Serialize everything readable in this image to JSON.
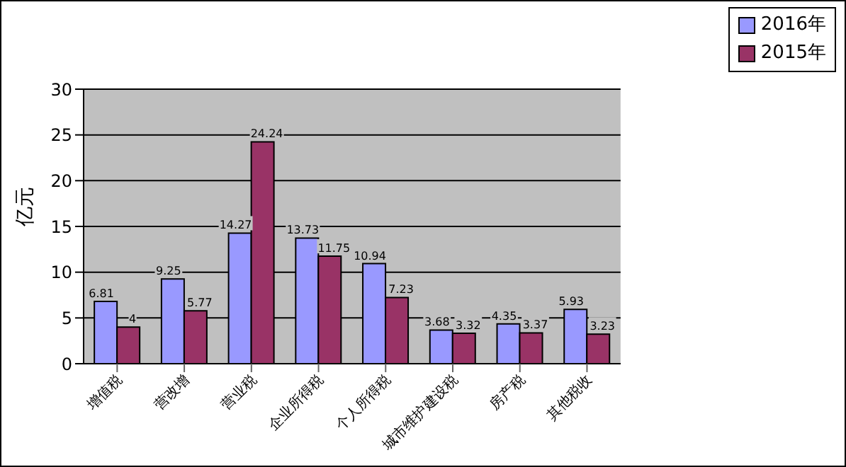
{
  "chart_data": {
    "type": "bar",
    "ylabel": "亿元",
    "categories": [
      "增值税",
      "营改增",
      "营业税",
      "企业所得税",
      "个人所得税",
      "城市维护建设税",
      "房产税",
      "其他税收"
    ],
    "series": [
      {
        "name": "2016年",
        "color": "#9999ff",
        "values": [
          6.81,
          9.25,
          14.27,
          13.73,
          10.94,
          3.68,
          4.35,
          5.93
        ]
      },
      {
        "name": "2015年",
        "color": "#993366",
        "values": [
          4,
          5.77,
          24.24,
          11.75,
          7.23,
          3.32,
          3.37,
          3.23
        ]
      }
    ],
    "ylim": [
      0,
      30
    ],
    "yticks": [
      0,
      5,
      10,
      15,
      20,
      25,
      30
    ],
    "grid": "y",
    "legend": "top right",
    "data_labels": true
  }
}
